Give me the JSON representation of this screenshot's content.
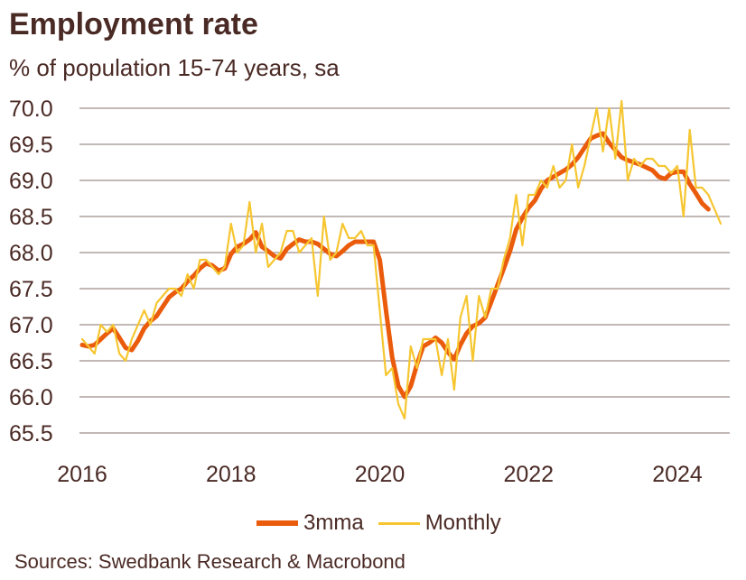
{
  "chart_data": {
    "type": "line",
    "title": "Employment rate",
    "subtitle": "% of population 15-74 years, sa",
    "xlabel": "",
    "ylabel": "",
    "ylim": [
      65.5,
      70.0
    ],
    "yticks": [
      "70.0",
      "69.5",
      "69.0",
      "68.5",
      "68.0",
      "67.5",
      "67.0",
      "66.5",
      "66.0",
      "65.5"
    ],
    "xticks": [
      "2016",
      "2018",
      "2020",
      "2022",
      "2024"
    ],
    "x_start": "2016-01",
    "x_frequency": "monthly",
    "grid": true,
    "legend_position": "bottom",
    "source": "Sources: Swedbank Research & Macrobond",
    "colors": {
      "3mma": "#ea5b0c",
      "monthly": "#f6c630",
      "grid": "#9e8e8b",
      "text": "#4a2a25"
    },
    "series": [
      {
        "name": "3mma",
        "values": [
          66.72,
          66.7,
          66.72,
          66.8,
          66.88,
          66.95,
          66.82,
          66.68,
          66.65,
          66.78,
          66.95,
          67.05,
          67.12,
          67.25,
          67.38,
          67.45,
          67.5,
          67.6,
          67.68,
          67.78,
          67.85,
          67.82,
          67.75,
          67.78,
          67.98,
          68.08,
          68.12,
          68.18,
          68.28,
          68.08,
          68.02,
          67.95,
          67.92,
          68.05,
          68.12,
          68.18,
          68.15,
          68.15,
          68.12,
          68.05,
          67.98,
          67.95,
          68.02,
          68.1,
          68.15,
          68.15,
          68.15,
          68.15,
          67.9,
          67.2,
          66.55,
          66.15,
          66.0,
          66.15,
          66.45,
          66.7,
          66.75,
          66.82,
          66.75,
          66.62,
          66.52,
          66.72,
          66.88,
          66.98,
          67.02,
          67.1,
          67.32,
          67.55,
          67.78,
          68.02,
          68.32,
          68.48,
          68.62,
          68.72,
          68.88,
          69.0,
          69.05,
          69.1,
          69.15,
          69.22,
          69.32,
          69.45,
          69.58,
          69.62,
          69.65,
          69.52,
          69.42,
          69.32,
          69.28,
          69.25,
          69.22,
          69.18,
          69.14,
          69.05,
          69.02,
          69.1,
          69.12,
          69.12,
          68.95,
          68.82,
          68.68,
          68.6
        ]
      },
      {
        "name": "Monthly",
        "values": [
          66.8,
          66.7,
          66.6,
          67.0,
          66.9,
          67.0,
          66.6,
          66.5,
          66.8,
          67.0,
          67.2,
          67.0,
          67.3,
          67.4,
          67.5,
          67.5,
          67.4,
          67.7,
          67.5,
          67.9,
          67.9,
          67.8,
          67.7,
          67.8,
          68.4,
          68.0,
          68.1,
          68.7,
          68.0,
          68.4,
          67.8,
          67.9,
          68.0,
          68.3,
          68.3,
          68.0,
          68.1,
          68.2,
          67.4,
          68.5,
          67.9,
          68.0,
          68.4,
          68.2,
          68.2,
          68.3,
          68.1,
          68.1,
          67.2,
          66.3,
          66.4,
          65.9,
          65.7,
          66.7,
          66.4,
          66.8,
          66.8,
          66.8,
          66.3,
          66.8,
          66.1,
          67.1,
          67.4,
          66.5,
          67.4,
          67.1,
          67.5,
          67.5,
          67.9,
          68.2,
          68.8,
          68.1,
          68.8,
          68.8,
          69.0,
          68.9,
          69.2,
          68.9,
          69.0,
          69.5,
          68.9,
          69.2,
          69.6,
          70.0,
          69.4,
          70.0,
          69.3,
          70.1,
          69.0,
          69.3,
          69.2,
          69.3,
          69.3,
          69.2,
          69.2,
          69.1,
          69.2,
          68.5,
          69.7,
          68.9,
          68.9,
          68.8,
          68.6,
          68.4
        ]
      }
    ]
  },
  "legend": {
    "item1": "3mma",
    "item2": "Monthly"
  }
}
